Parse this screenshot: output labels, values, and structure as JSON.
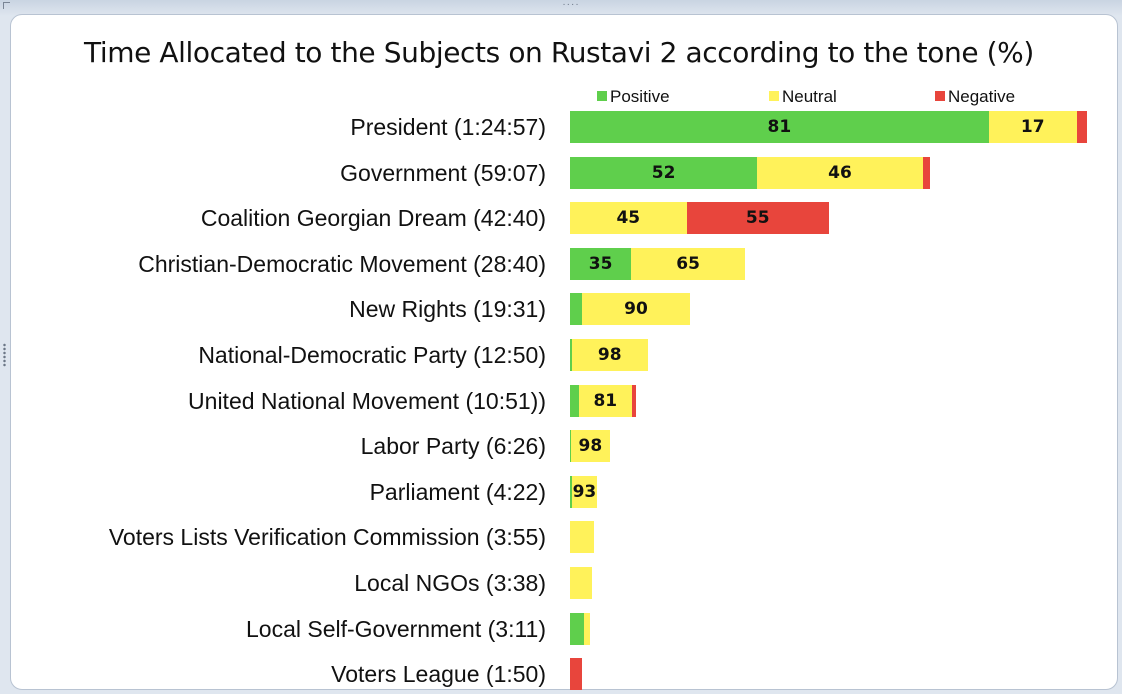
{
  "chart_data": {
    "type": "bar",
    "orientation": "horizontal",
    "stacked": true,
    "title": "Time Allocated to the Subjects on Rustavi 2 according to the tone  (%)",
    "legend_placement": "top",
    "categories": [
      "President (1:24:57)",
      "Government (59:07)",
      "Coalition Georgian Dream (42:40)",
      "Christian-Democratic Movement (28:40)",
      "New Rights (19:31)",
      "National-Democratic Party (12:50)",
      "United National Movement (10:51))",
      "Labor Party (6:26)",
      "Parliament (4:22)",
      "Voters Lists Verification Commission (3:55)",
      "Local NGOs (3:38)",
      "Local Self-Government (3:11)",
      "Voters League (1:50)"
    ],
    "durations": [
      "1:24:57",
      "59:07",
      "42:40",
      "28:40",
      "19:31",
      "12:50",
      "10:51",
      "6:26",
      "4:22",
      "3:55",
      "3:38",
      "3:11",
      "1:50"
    ],
    "series": [
      {
        "name": "Positive",
        "color": "#5fcf4c",
        "values": [
          81,
          52,
          0,
          35,
          10,
          2,
          13,
          2,
          7,
          0,
          0,
          70,
          0
        ],
        "labels": [
          "81",
          "52",
          "",
          "35",
          "",
          "",
          "",
          "",
          "",
          "",
          "",
          "",
          ""
        ]
      },
      {
        "name": "Neutral",
        "color": "#fff25a",
        "values": [
          17,
          46,
          45,
          65,
          90,
          98,
          81,
          98,
          93,
          100,
          100,
          30,
          0
        ],
        "labels": [
          "17",
          "46",
          "45",
          "65",
          "90",
          "98",
          "81",
          "98",
          "93",
          "",
          "",
          "",
          ""
        ]
      },
      {
        "name": "Negative",
        "color": "#e8453c",
        "values": [
          2,
          2,
          55,
          0,
          0,
          0,
          6,
          0,
          0,
          0,
          0,
          0,
          100
        ],
        "labels": [
          "",
          "",
          "55",
          "",
          "",
          "",
          "",
          "",
          "",
          "",
          "",
          "",
          ""
        ]
      }
    ],
    "grid": false
  }
}
